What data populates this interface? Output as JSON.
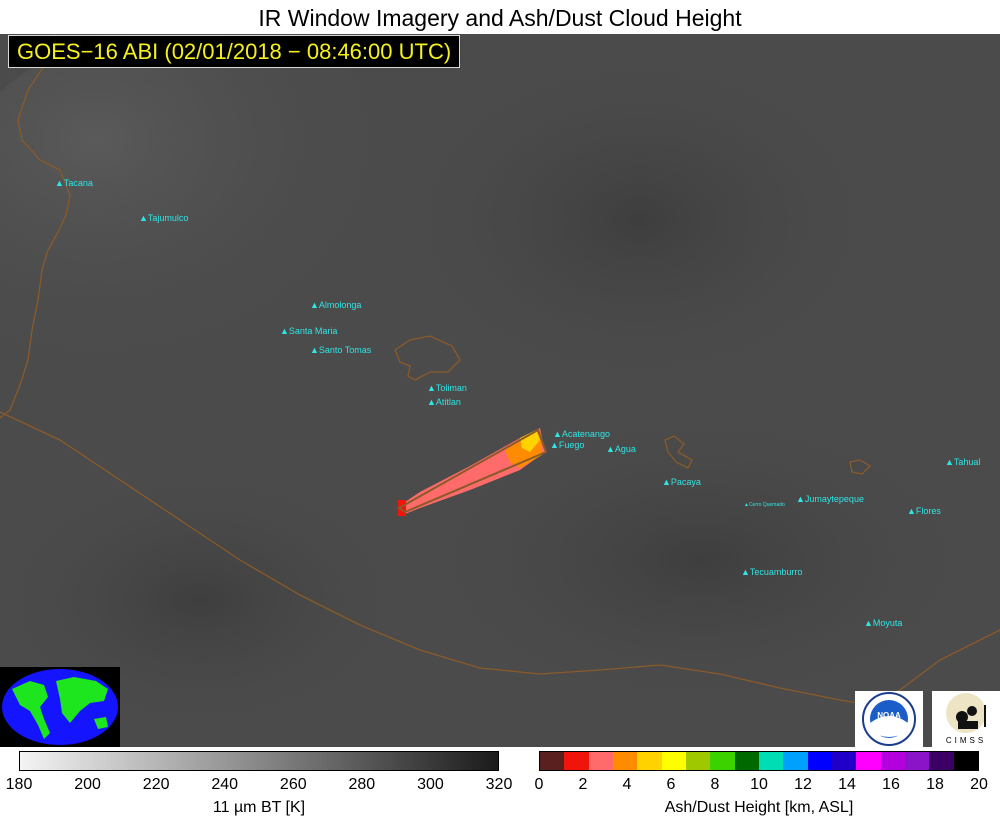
{
  "title": "IR Window Imagery and Ash/Dust Cloud Height",
  "subtitle": "GOES−16 ABI (02/01/2018 − 08:46:00 UTC)",
  "volcanoes": [
    "Tacana",
    "Tajumulco",
    "Almolonga",
    "Santa Maria",
    "Santo Tomas",
    "Toliman",
    "Atitlan",
    "Acatenango",
    "Fuego",
    "Agua",
    "Pacaya",
    "Cerro Quemado",
    "Jumaytepeque",
    "Tecuamburro",
    "Moyuta",
    "Flores",
    "Tahual"
  ],
  "logos": {
    "noaa": "NOAA",
    "cimss": "CIMSS"
  },
  "bt_colorbar": {
    "ticks": [
      "180",
      "200",
      "220",
      "240",
      "260",
      "280",
      "300",
      "320"
    ],
    "label": "11 µm BT [K]",
    "range": [
      180,
      320
    ]
  },
  "ash_colorbar": {
    "ticks": [
      "0",
      "2",
      "4",
      "6",
      "8",
      "10",
      "12",
      "14",
      "16",
      "18",
      "20"
    ],
    "label": "Ash/Dust Height [km, ASL]",
    "range": [
      0,
      20
    ],
    "colors": [
      "#5a2020",
      "#f0140a",
      "#ff6a6a",
      "#ff8c00",
      "#ffd200",
      "#ffff00",
      "#a0c800",
      "#3cd200",
      "#006a00",
      "#00dcb4",
      "#00a0ff",
      "#0000ff",
      "#2000c8",
      "#ff00ff",
      "#b400dc",
      "#8c14c8",
      "#3c0064",
      "#000000"
    ]
  },
  "colors": {
    "map_background": "#4b4b4b",
    "border_line": "#8a5a2a",
    "volcano_label": "#2ee6e6",
    "subtitle_text": "#f5f01e"
  }
}
